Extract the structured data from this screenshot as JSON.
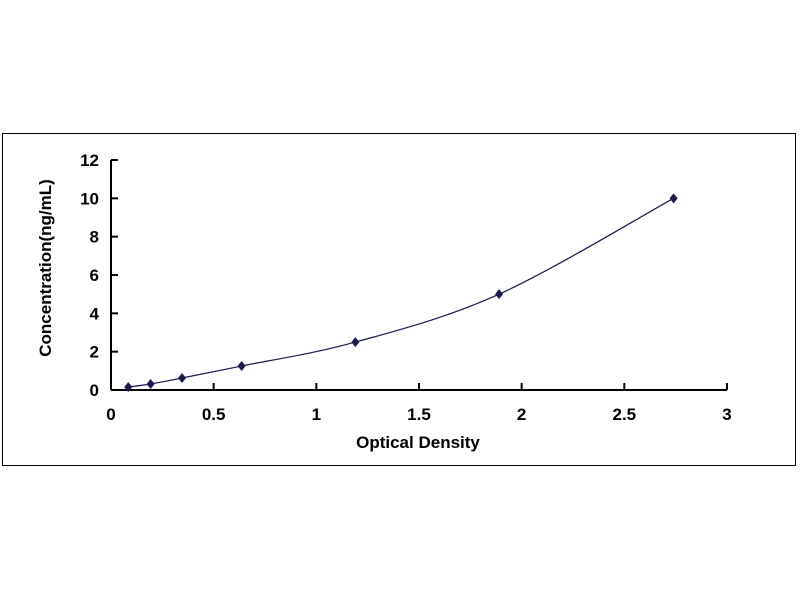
{
  "chart_data": {
    "type": "scatter",
    "title": "",
    "xlabel": "Optical Density",
    "ylabel": "Concentration(ng/mL)",
    "xlim": [
      0,
      3
    ],
    "ylim": [
      0,
      12
    ],
    "xticks": [
      "0",
      "0.5",
      "1",
      "1.5",
      "2",
      "2.5",
      "3"
    ],
    "yticks": [
      "0",
      "2",
      "4",
      "6",
      "8",
      "10",
      "12"
    ],
    "grid": false,
    "legend": "none",
    "trendline": "smooth curve",
    "marker": "diamond",
    "color": "#1a1a4e",
    "x": [
      0.084,
      0.193,
      0.346,
      0.636,
      1.19,
      1.89,
      2.74
    ],
    "y": [
      0.156,
      0.312,
      0.625,
      1.25,
      2.5,
      5,
      10
    ]
  }
}
